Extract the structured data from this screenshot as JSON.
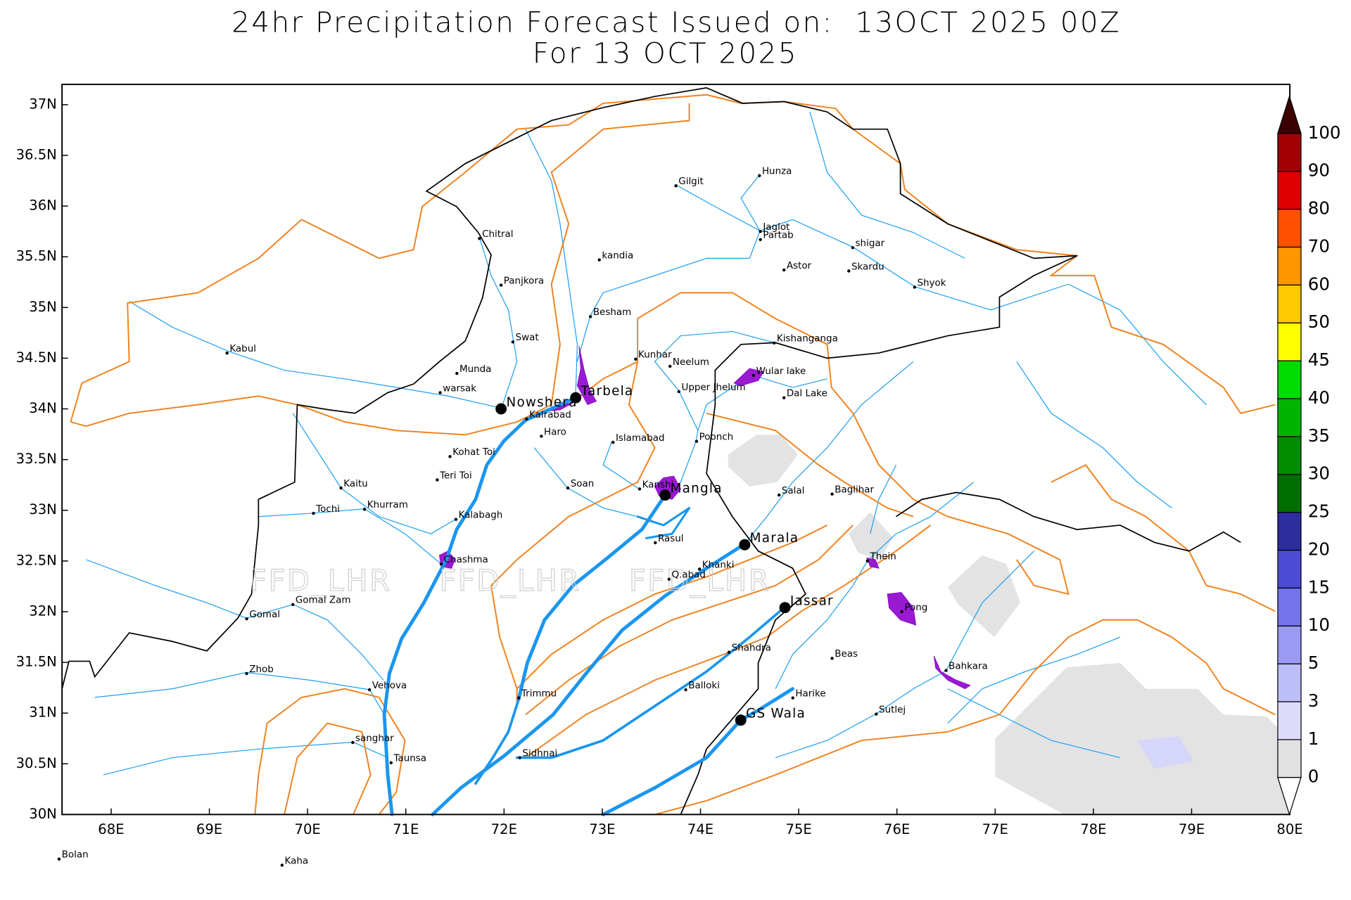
{
  "header": {
    "title": [
      "24hr Precipitation Forecast Issued on:  13OCT 2025 00Z",
      "For 13 OCT 2025"
    ]
  },
  "map": {
    "xlim": [
      67.5,
      80
    ],
    "ylim": [
      30,
      37.2
    ],
    "xticks": [
      {
        "value": 68,
        "label": "68E"
      },
      {
        "value": 69,
        "label": "69E"
      },
      {
        "value": 70,
        "label": "70E"
      },
      {
        "value": 71,
        "label": "71E"
      },
      {
        "value": 72,
        "label": "72E"
      },
      {
        "value": 73,
        "label": "73E"
      },
      {
        "value": 74,
        "label": "74E"
      },
      {
        "value": 75,
        "label": "75E"
      },
      {
        "value": 76,
        "label": "76E"
      },
      {
        "value": 77,
        "label": "77E"
      },
      {
        "value": 78,
        "label": "78E"
      },
      {
        "value": 79,
        "label": "79E"
      },
      {
        "value": 80,
        "label": "80E"
      }
    ],
    "yticks": [
      {
        "value": 30,
        "label": "30N"
      },
      {
        "value": 30.5,
        "label": "30.5N"
      },
      {
        "value": 31,
        "label": "31N"
      },
      {
        "value": 31.5,
        "label": "31.5N"
      },
      {
        "value": 32,
        "label": "32N"
      },
      {
        "value": 32.5,
        "label": "32.5N"
      },
      {
        "value": 33,
        "label": "33N"
      },
      {
        "value": 33.5,
        "label": "33.5N"
      },
      {
        "value": 34,
        "label": "34N"
      },
      {
        "value": 34.5,
        "label": "34.5N"
      },
      {
        "value": 35,
        "label": "35N"
      },
      {
        "value": 35.5,
        "label": "35.5N"
      },
      {
        "value": 36,
        "label": "36N"
      },
      {
        "value": 36.5,
        "label": "36.5N"
      },
      {
        "value": 37,
        "label": "37N"
      }
    ],
    "watermark": "FFD_LHR",
    "places": [
      {
        "name": "Gilgit",
        "lon": 73.75,
        "lat": 36.2
      },
      {
        "name": "Hunza",
        "lon": 74.6,
        "lat": 36.3
      },
      {
        "name": "Jaglot",
        "lon": 74.61,
        "lat": 35.75
      },
      {
        "name": "Partab",
        "lon": 74.61,
        "lat": 35.67
      },
      {
        "name": "Astor",
        "lon": 74.85,
        "lat": 35.37
      },
      {
        "name": "shigar",
        "lon": 75.55,
        "lat": 35.59
      },
      {
        "name": "Skardu",
        "lon": 75.51,
        "lat": 35.36
      },
      {
        "name": "Shyok",
        "lon": 76.18,
        "lat": 35.2
      },
      {
        "name": "Chitral",
        "lon": 71.75,
        "lat": 35.68
      },
      {
        "name": "Panjkora",
        "lon": 71.97,
        "lat": 35.22
      },
      {
        "name": "kandia",
        "lon": 72.97,
        "lat": 35.47
      },
      {
        "name": "Besham",
        "lon": 72.88,
        "lat": 34.91
      },
      {
        "name": "Kabul",
        "lon": 69.18,
        "lat": 34.55
      },
      {
        "name": "Swat",
        "lon": 72.09,
        "lat": 34.66
      },
      {
        "name": "Munda",
        "lon": 71.52,
        "lat": 34.35
      },
      {
        "name": "warsak",
        "lon": 71.35,
        "lat": 34.16
      },
      {
        "name": "Nowshera",
        "lon": 71.97,
        "lat": 34.0,
        "dam": true
      },
      {
        "name": "Tarbela",
        "lon": 72.73,
        "lat": 34.11,
        "dam": true
      },
      {
        "name": "Kalrabad",
        "lon": 72.23,
        "lat": 33.9
      },
      {
        "name": "Haro",
        "lon": 72.38,
        "lat": 33.73
      },
      {
        "name": "Kunhar",
        "lon": 73.34,
        "lat": 34.49
      },
      {
        "name": "Neelum",
        "lon": 73.69,
        "lat": 34.42
      },
      {
        "name": "Kishanganga",
        "lon": 74.75,
        "lat": 34.65
      },
      {
        "name": "Wular lake",
        "lon": 74.54,
        "lat": 34.33
      },
      {
        "name": "Upper Jhelum",
        "lon": 73.78,
        "lat": 34.17
      },
      {
        "name": "Dal Lake",
        "lon": 74.85,
        "lat": 34.11
      },
      {
        "name": "Islamabad",
        "lon": 73.11,
        "lat": 33.67
      },
      {
        "name": "Poonch",
        "lon": 73.96,
        "lat": 33.68
      },
      {
        "name": "Kohat Toi",
        "lon": 71.45,
        "lat": 33.53
      },
      {
        "name": "Teri Toi",
        "lon": 71.32,
        "lat": 33.3
      },
      {
        "name": "Soan",
        "lon": 72.65,
        "lat": 33.22
      },
      {
        "name": "Kaitu",
        "lon": 70.34,
        "lat": 33.22
      },
      {
        "name": "Khurram",
        "lon": 70.58,
        "lat": 33.01
      },
      {
        "name": "Tochi",
        "lon": 70.06,
        "lat": 32.97
      },
      {
        "name": "Kalabagh",
        "lon": 71.51,
        "lat": 32.91
      },
      {
        "name": "Kanshi",
        "lon": 73.38,
        "lat": 33.21
      },
      {
        "name": "Mangla",
        "lon": 73.64,
        "lat": 33.15,
        "dam": true
      },
      {
        "name": "Salal",
        "lon": 74.8,
        "lat": 33.15
      },
      {
        "name": "Baglihar",
        "lon": 75.34,
        "lat": 33.16
      },
      {
        "name": "Rasul",
        "lon": 73.54,
        "lat": 32.68
      },
      {
        "name": "Marala",
        "lon": 74.45,
        "lat": 32.66,
        "dam": true
      },
      {
        "name": "Chashma",
        "lon": 71.36,
        "lat": 32.47
      },
      {
        "name": "Khanki",
        "lon": 73.99,
        "lat": 32.42
      },
      {
        "name": "Thein",
        "lon": 75.7,
        "lat": 32.5
      },
      {
        "name": "Q.abad",
        "lon": 73.68,
        "lat": 32.32
      },
      {
        "name": "Gomal Zam",
        "lon": 69.85,
        "lat": 32.07
      },
      {
        "name": "Gomal",
        "lon": 69.38,
        "lat": 31.93
      },
      {
        "name": "Jassar",
        "lon": 74.86,
        "lat": 32.04,
        "dam": true
      },
      {
        "name": "Pong",
        "lon": 76.05,
        "lat": 32.0
      },
      {
        "name": "Shahdra",
        "lon": 74.29,
        "lat": 31.6
      },
      {
        "name": "Beas",
        "lon": 75.34,
        "lat": 31.54
      },
      {
        "name": "Bahkara",
        "lon": 76.5,
        "lat": 31.42
      },
      {
        "name": "Zhob",
        "lon": 69.38,
        "lat": 31.39
      },
      {
        "name": "Balloki",
        "lon": 73.85,
        "lat": 31.23
      },
      {
        "name": "Vehova",
        "lon": 70.63,
        "lat": 31.23
      },
      {
        "name": "Harike",
        "lon": 74.94,
        "lat": 31.15
      },
      {
        "name": "Trimmu",
        "lon": 72.15,
        "lat": 31.15
      },
      {
        "name": "Sutlej",
        "lon": 75.79,
        "lat": 30.99
      },
      {
        "name": "GS Wala",
        "lon": 74.41,
        "lat": 30.93,
        "dam": true
      },
      {
        "name": "sanghar",
        "lon": 70.46,
        "lat": 30.71
      },
      {
        "name": "Sidhnai",
        "lon": 72.16,
        "lat": 30.56
      },
      {
        "name": "Taunsa",
        "lon": 70.85,
        "lat": 30.51
      },
      {
        "name": "Bolan",
        "lon": 67.47,
        "lat": 29.56
      },
      {
        "name": "Kaha",
        "lon": 69.74,
        "lat": 29.5
      }
    ]
  },
  "colorbar": {
    "levels": [
      0,
      1,
      3,
      5,
      10,
      15,
      20,
      25,
      30,
      35,
      40,
      45,
      50,
      60,
      70,
      80,
      90,
      100
    ],
    "colors": [
      "#e1e1e1",
      "#dcdcfa",
      "#bebefa",
      "#9b9bf5",
      "#7373eb",
      "#4b4bd7",
      "#2d2da0",
      "#006e00",
      "#008c00",
      "#00b400",
      "#00dc00",
      "#ffff00",
      "#ffc800",
      "#ff9600",
      "#ff5000",
      "#dc0000",
      "#a00000"
    ],
    "under_color": "#ffffff",
    "over_color": "#3c0000"
  }
}
